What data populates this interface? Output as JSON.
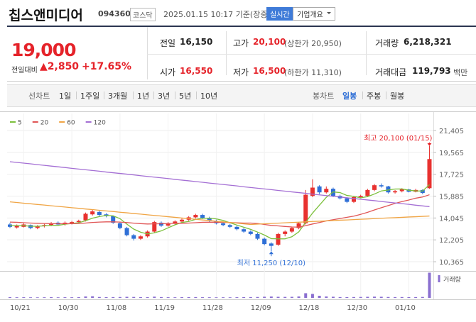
{
  "header": {
    "title": "칩스앤미디어",
    "code": "094360",
    "market": "코스닥",
    "timestamp": "2025.01.15 10:17 기준(장중)",
    "realtime_button": "실시간",
    "company_button": "기업개요"
  },
  "price": {
    "current": "19,000",
    "change_label": "전일대비",
    "change": "▲2,850",
    "change_rate": "+17.65%"
  },
  "stats": [
    {
      "label": "전일",
      "value": "16,150"
    },
    {
      "label": "고가",
      "value": "20,100",
      "note": "(상한가 20,950)"
    },
    {
      "label": "거래량",
      "value": "6,218,321"
    },
    {
      "label": "시가",
      "value": "16,550"
    },
    {
      "label": "저가",
      "value": "16,500",
      "note": "(하한가 11,310)"
    },
    {
      "label": "거래대금",
      "value": "119,793",
      "unit": "백만"
    }
  ],
  "tabs": {
    "line_label": "선차트",
    "line_periods": [
      "1일",
      "1주일",
      "3개월",
      "1년",
      "3년",
      "5년",
      "10년"
    ],
    "candle_label": "봉차트",
    "candle_periods": [
      "일봉",
      "주봉",
      "월봉"
    ]
  },
  "chart_data": {
    "type": "candlestick",
    "categories": [
      null,
      null,
      "10/21",
      null,
      null,
      null,
      null,
      null,
      null,
      "10/30",
      null,
      null,
      null,
      null,
      null,
      null,
      "11/08",
      null,
      null,
      null,
      null,
      null,
      null,
      "11/19",
      null,
      null,
      null,
      null,
      null,
      null,
      "11/28",
      null,
      null,
      null,
      null,
      null,
      null,
      "12/09",
      null,
      null,
      null,
      null,
      null,
      null,
      "12/18",
      null,
      null,
      null,
      null,
      null,
      null,
      "12/30",
      null,
      null,
      null,
      null,
      null,
      null,
      "01/10",
      null,
      null,
      null
    ],
    "open": [
      13500,
      13250,
      13300,
      13450,
      13200,
      13350,
      13450,
      13650,
      13500,
      13600,
      13700,
      13850,
      14350,
      14550,
      14350,
      14200,
      13600,
      13200,
      12600,
      12300,
      12500,
      12900,
      13650,
      13400,
      13600,
      13750,
      13900,
      14100,
      14300,
      14050,
      13800,
      13600,
      13450,
      13300,
      13100,
      12900,
      12700,
      12300,
      11900,
      11800,
      12700,
      12900,
      13200,
      13600,
      15900,
      16700,
      16200,
      16500,
      15900,
      15700,
      15400,
      15800,
      15900,
      16400,
      16800,
      16700,
      16200,
      16300,
      16450,
      16250,
      16400,
      16550
    ],
    "high": [
      13650,
      13500,
      13600,
      13500,
      13450,
      13550,
      13700,
      13750,
      13750,
      13800,
      13900,
      14500,
      14750,
      14650,
      14450,
      14250,
      13700,
      13300,
      12700,
      12600,
      13000,
      13800,
      13750,
      13700,
      13850,
      14000,
      14200,
      14400,
      14400,
      14150,
      13900,
      13700,
      13550,
      13400,
      13200,
      13000,
      12800,
      12400,
      12000,
      12800,
      13000,
      13300,
      13700,
      16400,
      17300,
      16800,
      16700,
      16600,
      16000,
      15800,
      15900,
      16000,
      16500,
      16900,
      16950,
      16750,
      16400,
      16550,
      16500,
      16500,
      16450,
      20100
    ],
    "low": [
      13200,
      13150,
      13250,
      13100,
      13100,
      13250,
      13350,
      13400,
      13400,
      13500,
      13600,
      13750,
      14250,
      14200,
      14100,
      13550,
      13100,
      12500,
      12150,
      12200,
      12400,
      12800,
      13300,
      13300,
      13500,
      13650,
      13800,
      14000,
      13950,
      13700,
      13500,
      13350,
      13200,
      13000,
      12800,
      12600,
      12200,
      11750,
      11250,
      11700,
      12500,
      12800,
      13100,
      13500,
      15800,
      16050,
      16100,
      15800,
      15600,
      15300,
      15300,
      15700,
      15800,
      16300,
      16600,
      16100,
      16100,
      16200,
      16200,
      16200,
      16050,
      16500
    ],
    "close": [
      13300,
      13400,
      13500,
      13200,
      13350,
      13450,
      13600,
      13500,
      13650,
      13700,
      13800,
      14400,
      14600,
      14300,
      14200,
      13650,
      13200,
      12600,
      12300,
      12500,
      12900,
      13700,
      13400,
      13600,
      13750,
      13900,
      14100,
      14300,
      14050,
      13800,
      13600,
      13450,
      13300,
      13100,
      12900,
      12700,
      12300,
      11850,
      11700,
      12700,
      12900,
      13200,
      13600,
      16000,
      16600,
      16200,
      16500,
      15900,
      15700,
      15400,
      15800,
      15900,
      16400,
      16800,
      16700,
      16200,
      16300,
      16450,
      16250,
      16400,
      16150,
      19000
    ],
    "up_color": "#e8312f",
    "down_color": "#2f6fd6",
    "ylim": [
      9830,
      21880
    ],
    "yticks": [
      {
        "value": 21405,
        "label": "21,405"
      },
      {
        "value": 19565,
        "label": "19,565"
      },
      {
        "value": 17725,
        "label": "17,725"
      },
      {
        "value": 15885,
        "label": "15,885"
      },
      {
        "value": 14045,
        "label": "14,045"
      },
      {
        "value": 12205,
        "label": "12,205"
      },
      {
        "value": 10365,
        "label": "10,365"
      }
    ],
    "grid": true,
    "moving_averages": [
      {
        "name": "5",
        "color": "#7cc03c",
        "values": [
          13400,
          13400,
          13400,
          13350,
          13350,
          13380,
          13420,
          13420,
          13520,
          13580,
          13650,
          13810,
          14030,
          14160,
          14260,
          14230,
          13990,
          13530,
          13110,
          12850,
          12700,
          12800,
          12960,
          13220,
          13470,
          13670,
          13750,
          13930,
          14020,
          14030,
          13970,
          13840,
          13640,
          13450,
          13270,
          13090,
          12860,
          12610,
          12310,
          12290,
          12290,
          12470,
          12880,
          13680,
          14460,
          15120,
          15780,
          16240,
          16180,
          15940,
          15860,
          15740,
          15840,
          16060,
          16320,
          16400,
          16480,
          16490,
          16380,
          16320,
          16310,
          16850
        ]
      },
      {
        "name": "20",
        "color": "#e05555",
        "values": [
          13700,
          13680,
          13650,
          13620,
          13600,
          13580,
          13570,
          13560,
          13560,
          13570,
          13580,
          13620,
          13670,
          13700,
          13720,
          13720,
          13700,
          13660,
          13610,
          13570,
          13540,
          13550,
          13560,
          13580,
          13590,
          13600,
          13620,
          13650,
          13680,
          13690,
          13690,
          13680,
          13660,
          13640,
          13620,
          13620,
          13580,
          13500,
          13420,
          13380,
          13330,
          13290,
          13280,
          13400,
          13540,
          13660,
          13800,
          13900,
          14000,
          14100,
          14200,
          14350,
          14520,
          14720,
          14910,
          15090,
          15270,
          15420,
          15560,
          15710,
          15810,
          16000
        ]
      },
      {
        "name": "60",
        "color": "#f0a545",
        "values": [
          15400,
          15350,
          15290,
          15240,
          15180,
          15130,
          15070,
          15020,
          14970,
          14910,
          14860,
          14800,
          14750,
          14690,
          14640,
          14590,
          14530,
          14480,
          14420,
          14370,
          14310,
          14260,
          14210,
          14150,
          14100,
          14040,
          13990,
          13930,
          13880,
          13830,
          13770,
          13720,
          13660,
          13610,
          13550,
          13500,
          13530,
          13560,
          13580,
          13610,
          13640,
          13670,
          13690,
          13720,
          13750,
          13770,
          13800,
          13830,
          13860,
          13880,
          13910,
          13940,
          13960,
          13990,
          14020,
          14050,
          14070,
          14100,
          14130,
          14150,
          14180,
          14210
        ]
      },
      {
        "name": "120",
        "color": "#a46fd4",
        "values": [
          18780,
          18720,
          18660,
          18600,
          18530,
          18470,
          18410,
          18350,
          18290,
          18220,
          18160,
          18100,
          18040,
          17980,
          17910,
          17850,
          17790,
          17730,
          17670,
          17600,
          17540,
          17480,
          17420,
          17360,
          17290,
          17230,
          17170,
          17110,
          17050,
          16980,
          16920,
          16860,
          16800,
          16740,
          16670,
          16610,
          16550,
          16490,
          16430,
          16360,
          16300,
          16240,
          16180,
          16120,
          16050,
          15990,
          15930,
          15870,
          15810,
          15740,
          15680,
          15620,
          15560,
          15500,
          15430,
          15370,
          15310,
          15250,
          15190,
          15120,
          15060,
          15000
        ]
      }
    ],
    "volume": [
      180000,
      150000,
      160000,
      140000,
      130000,
      150000,
      170000,
      140000,
      160000,
      150000,
      170000,
      350000,
      400000,
      220000,
      180000,
      200000,
      210000,
      260000,
      230000,
      180000,
      170000,
      300000,
      200000,
      160000,
      150000,
      170000,
      190000,
      200000,
      160000,
      150000,
      140000,
      150000,
      140000,
      160000,
      180000,
      200000,
      220000,
      280000,
      330000,
      260000,
      240000,
      260000,
      350000,
      1150000,
      980000,
      520000,
      350000,
      280000,
      200000,
      190000,
      210000,
      230000,
      260000,
      300000,
      270000,
      220000,
      200000,
      210000,
      180000,
      200000,
      230000,
      6218321
    ],
    "volume_ylim": [
      0,
      6300000
    ],
    "volume_color": "#8a6fd0",
    "volume_label": "거래량",
    "annotations": [
      {
        "text": "최고 20,100 (01/15)",
        "color": "#e5232a"
      },
      {
        "text": "최저 11,250 (12/10)",
        "color": "#2f6fd6"
      }
    ]
  }
}
